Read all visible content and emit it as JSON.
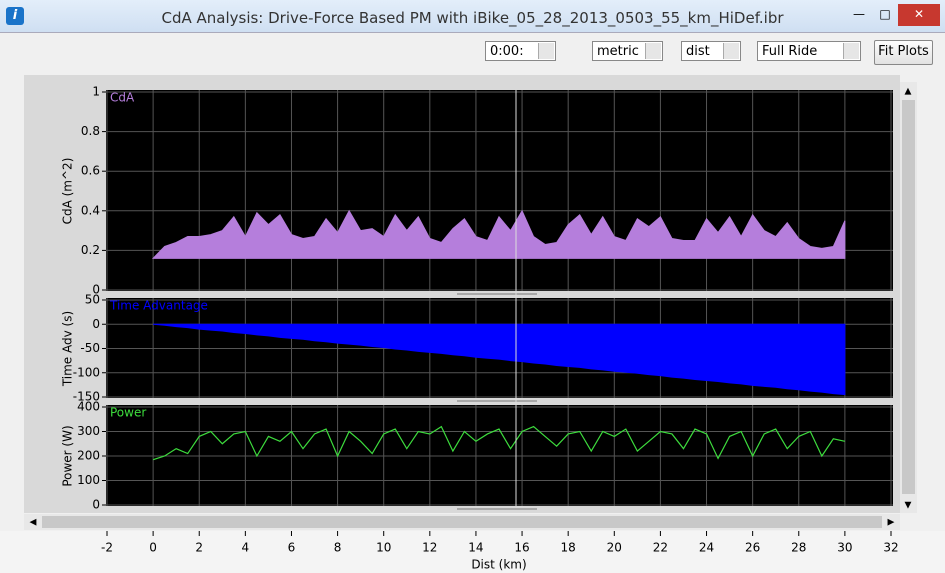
{
  "window": {
    "title": "CdA Analysis:  Drive-Force Based PM with iBike_05_28_2013_0503_55_km_HiDef.ibr"
  },
  "toolbar": {
    "time": "0:00:",
    "units": "metric",
    "x_mode": "dist",
    "range": "Full Ride",
    "fit_button": "Fit Plots"
  },
  "chart_data": [
    {
      "type": "area",
      "title": "CdA",
      "y_label": "CdA (m^2)",
      "color": "#b57edc",
      "x": [
        0,
        0.5,
        1,
        1.5,
        2,
        2.5,
        3,
        3.5,
        4,
        4.5,
        5,
        5.5,
        6,
        6.5,
        7,
        7.5,
        8,
        8.5,
        9,
        9.5,
        10,
        10.5,
        11,
        11.5,
        12,
        12.5,
        13,
        13.5,
        14,
        14.5,
        15,
        15.5,
        16,
        16.5,
        17,
        17.5,
        18,
        18.5,
        19,
        19.5,
        20,
        20.5,
        21,
        21.5,
        22,
        22.5,
        23,
        23.5,
        24,
        24.5,
        25,
        25.5,
        26,
        26.5,
        27,
        27.5,
        28,
        28.5,
        29,
        29.5,
        30
      ],
      "values": [
        0.16,
        0.22,
        0.24,
        0.27,
        0.27,
        0.28,
        0.3,
        0.37,
        0.27,
        0.39,
        0.33,
        0.38,
        0.28,
        0.26,
        0.27,
        0.36,
        0.29,
        0.4,
        0.3,
        0.31,
        0.27,
        0.38,
        0.3,
        0.37,
        0.26,
        0.24,
        0.31,
        0.36,
        0.27,
        0.25,
        0.37,
        0.3,
        0.4,
        0.27,
        0.23,
        0.24,
        0.33,
        0.38,
        0.28,
        0.37,
        0.27,
        0.25,
        0.36,
        0.32,
        0.37,
        0.26,
        0.25,
        0.25,
        0.36,
        0.29,
        0.37,
        0.27,
        0.38,
        0.3,
        0.27,
        0.34,
        0.26,
        0.22,
        0.21,
        0.22,
        0.35
      ],
      "xlim": [
        -2,
        32
      ],
      "ylim": [
        0,
        1
      ],
      "yticks": [
        0,
        0.2,
        0.4,
        0.6,
        0.8,
        1
      ],
      "grid": true
    },
    {
      "type": "area",
      "title": "Time Advantage",
      "y_label": "Time Adv (s)",
      "color": "#0000ff",
      "x": [
        0,
        0.5,
        1,
        1.5,
        2,
        2.5,
        3,
        3.5,
        4,
        4.5,
        5,
        5.5,
        6,
        6.5,
        7,
        7.5,
        8,
        8.5,
        9,
        9.5,
        10,
        10.5,
        11,
        11.5,
        12,
        12.5,
        13,
        13.5,
        14,
        14.5,
        15,
        15.5,
        16,
        16.5,
        17,
        17.5,
        18,
        18.5,
        19,
        19.5,
        20,
        20.5,
        21,
        21.5,
        22,
        22.5,
        23,
        23.5,
        24,
        24.5,
        25,
        25.5,
        26,
        26.5,
        27,
        27.5,
        28,
        28.5,
        29,
        29.5,
        30
      ],
      "values": [
        0,
        -2,
        -5,
        -7,
        -10,
        -12,
        -14,
        -17,
        -19,
        -22,
        -24,
        -27,
        -29,
        -31,
        -34,
        -36,
        -39,
        -41,
        -43,
        -46,
        -48,
        -51,
        -53,
        -56,
        -58,
        -60,
        -63,
        -65,
        -68,
        -70,
        -72,
        -75,
        -77,
        -80,
        -82,
        -85,
        -87,
        -89,
        -92,
        -94,
        -97,
        -99,
        -101,
        -104,
        -106,
        -109,
        -111,
        -114,
        -116,
        -118,
        -121,
        -123,
        -126,
        -128,
        -130,
        -133,
        -135,
        -138,
        -140,
        -143,
        -145
      ],
      "xlim": [
        -2,
        32
      ],
      "ylim": [
        -150,
        50
      ],
      "yticks": [
        -150,
        -100,
        -50,
        0,
        50
      ],
      "grid": true
    },
    {
      "type": "line",
      "title": "Power",
      "y_label": "Power (W)",
      "x_label": "Dist (km)",
      "color": "#3ddc3d",
      "x": [
        0,
        0.5,
        1,
        1.5,
        2,
        2.5,
        3,
        3.5,
        4,
        4.5,
        5,
        5.5,
        6,
        6.5,
        7,
        7.5,
        8,
        8.5,
        9,
        9.5,
        10,
        10.5,
        11,
        11.5,
        12,
        12.5,
        13,
        13.5,
        14,
        14.5,
        15,
        15.5,
        16,
        16.5,
        17,
        17.5,
        18,
        18.5,
        19,
        19.5,
        20,
        20.5,
        21,
        21.5,
        22,
        22.5,
        23,
        23.5,
        24,
        24.5,
        25,
        25.5,
        26,
        26.5,
        27,
        27.5,
        28,
        28.5,
        29,
        29.5,
        30
      ],
      "values": [
        185,
        200,
        230,
        210,
        280,
        300,
        250,
        290,
        300,
        200,
        280,
        260,
        300,
        230,
        290,
        310,
        200,
        300,
        260,
        210,
        290,
        310,
        230,
        300,
        290,
        320,
        220,
        300,
        260,
        290,
        310,
        230,
        300,
        320,
        280,
        240,
        290,
        300,
        220,
        300,
        280,
        310,
        220,
        260,
        300,
        290,
        230,
        310,
        290,
        190,
        280,
        300,
        200,
        290,
        310,
        230,
        280,
        300,
        200,
        270,
        260
      ],
      "xlim": [
        -2,
        32
      ],
      "xticks": [
        -2,
        0,
        2,
        4,
        6,
        8,
        10,
        12,
        14,
        16,
        18,
        20,
        22,
        24,
        26,
        28,
        30,
        32
      ],
      "ylim": [
        0,
        400
      ],
      "yticks": [
        0,
        100,
        200,
        300,
        400
      ],
      "grid": true
    }
  ]
}
